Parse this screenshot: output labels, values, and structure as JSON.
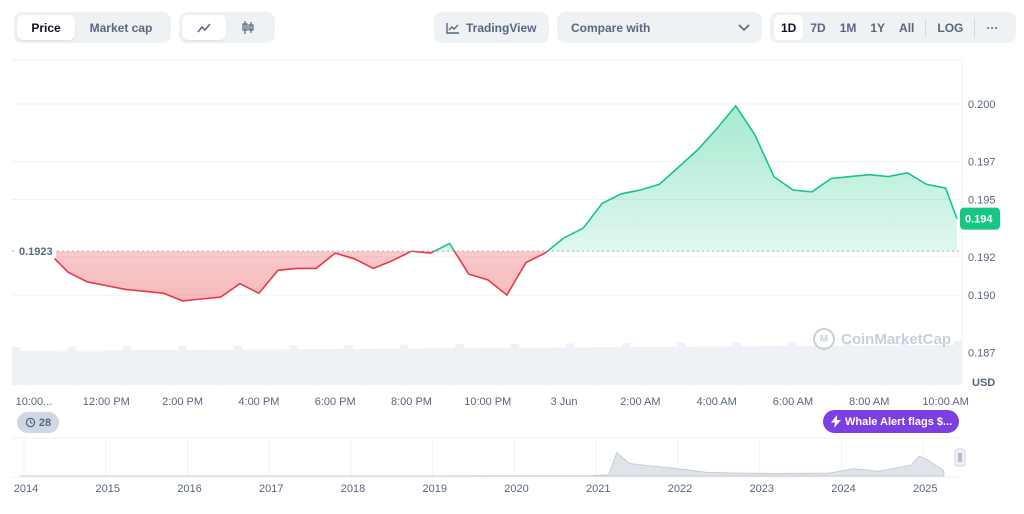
{
  "toolbar": {
    "price_label": "Price",
    "market_cap_label": "Market cap",
    "line_chart_icon": "line-chart-icon",
    "candle_chart_icon": "candlestick-icon",
    "tradingview_label": "TradingView",
    "compare_label": "Compare with",
    "ranges": [
      "1D",
      "7D",
      "1M",
      "1Y",
      "All"
    ],
    "active_range": "1D",
    "log_label": "LOG",
    "more_label": "···"
  },
  "colors": {
    "up": "#16c784",
    "down": "#ea3943",
    "accent_purple": "#7b3fe4"
  },
  "chart_data": {
    "type": "area",
    "currency": "USD",
    "baseline": 0.1923,
    "baseline_label": "0.1923",
    "current_price": 0.194,
    "current_label": "0.194",
    "ylim": [
      0.1853,
      0.2023
    ],
    "y_ticks": [
      0.187,
      0.19,
      0.192,
      0.195,
      0.197,
      0.2
    ],
    "y_tick_labels": [
      "0.187",
      "0.190",
      "0.192",
      "0.195",
      "0.197",
      "0.200"
    ],
    "x_tick_labels": [
      "10:00...",
      "12:00 PM",
      "2:00 PM",
      "4:00 PM",
      "6:00 PM",
      "8:00 PM",
      "10:00 PM",
      "3 Jun",
      "2:00 AM",
      "4:00 AM",
      "6:00 AM",
      "8:00 AM",
      "10:00 AM"
    ],
    "x_hours": [
      0,
      2,
      4,
      6,
      8,
      10,
      12,
      14,
      16,
      18,
      20,
      22,
      24
    ],
    "points": [
      [
        0,
        0.1923
      ],
      [
        0.5,
        0.1922
      ],
      [
        1.0,
        0.1912
      ],
      [
        1.5,
        0.1907
      ],
      [
        2.0,
        0.1905
      ],
      [
        2.5,
        0.1903
      ],
      [
        3.0,
        0.1902
      ],
      [
        3.5,
        0.1901
      ],
      [
        4.0,
        0.1897
      ],
      [
        4.5,
        0.1898
      ],
      [
        5.0,
        0.1899
      ],
      [
        5.5,
        0.1906
      ],
      [
        6.0,
        0.1901
      ],
      [
        6.5,
        0.1913
      ],
      [
        7.0,
        0.1914
      ],
      [
        7.5,
        0.1914
      ],
      [
        8.0,
        0.1922
      ],
      [
        8.5,
        0.1919
      ],
      [
        9.0,
        0.1914
      ],
      [
        9.5,
        0.1918
      ],
      [
        10.0,
        0.1923
      ],
      [
        10.5,
        0.1922
      ],
      [
        11.0,
        0.1927
      ],
      [
        11.5,
        0.1911
      ],
      [
        12.0,
        0.1908
      ],
      [
        12.5,
        0.19
      ],
      [
        13.0,
        0.1917
      ],
      [
        13.5,
        0.1922
      ],
      [
        14.0,
        0.193
      ],
      [
        14.5,
        0.1935
      ],
      [
        15.0,
        0.1948
      ],
      [
        15.5,
        0.1953
      ],
      [
        16.0,
        0.1955
      ],
      [
        16.5,
        0.1958
      ],
      [
        17.0,
        0.1967
      ],
      [
        17.5,
        0.1976
      ],
      [
        18.0,
        0.1987
      ],
      [
        18.5,
        0.1999
      ],
      [
        19.0,
        0.1984
      ],
      [
        19.5,
        0.1962
      ],
      [
        20.0,
        0.1955
      ],
      [
        20.5,
        0.1954
      ],
      [
        21.0,
        0.1961
      ],
      [
        21.5,
        0.1962
      ],
      [
        22.0,
        0.1963
      ],
      [
        22.5,
        0.1962
      ],
      [
        23.0,
        0.1964
      ],
      [
        23.5,
        0.1958
      ],
      [
        24.0,
        0.1956
      ],
      [
        24.3,
        0.194
      ]
    ],
    "volume_caption": "USD",
    "news_count": "28",
    "whale_label": "Whale Alert flags $...",
    "watermark": "CoinMarketCap",
    "nav_year_labels": [
      "2014",
      "2015",
      "2016",
      "2017",
      "2018",
      "2019",
      "2020",
      "2021",
      "2022",
      "2023",
      "2024",
      "2025"
    ],
    "nav_history": [
      [
        2014.0,
        0.0
      ],
      [
        2019.0,
        0.0
      ],
      [
        2020.0,
        0.005
      ],
      [
        2021.0,
        0.01
      ],
      [
        2021.2,
        0.03
      ],
      [
        2021.3,
        0.65
      ],
      [
        2021.45,
        0.35
      ],
      [
        2021.7,
        0.28
      ],
      [
        2022.0,
        0.22
      ],
      [
        2022.4,
        0.1
      ],
      [
        2022.8,
        0.08
      ],
      [
        2023.3,
        0.07
      ],
      [
        2023.9,
        0.08
      ],
      [
        2024.2,
        0.2
      ],
      [
        2024.5,
        0.13
      ],
      [
        2024.9,
        0.3
      ],
      [
        2025.0,
        0.55
      ],
      [
        2025.1,
        0.45
      ],
      [
        2025.3,
        0.15
      ]
    ]
  }
}
